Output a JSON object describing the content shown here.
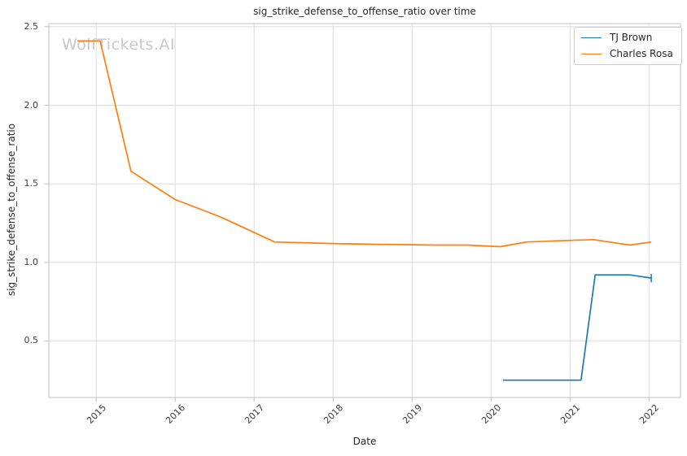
{
  "figure": {
    "watermark": "WolfTickets.AI"
  },
  "chart_data": {
    "type": "line",
    "title": "sig_strike_defense_to_offense_ratio over time",
    "xlabel": "Date",
    "ylabel": "sig_strike_defense_to_offense_ratio",
    "xlim": [
      2014.4,
      2022.4
    ],
    "ylim": [
      0.14,
      2.52
    ],
    "grid": true,
    "legend_position": "upper-right",
    "xticks": [
      {
        "value": 2015,
        "label": "2015"
      },
      {
        "value": 2016,
        "label": "2016"
      },
      {
        "value": 2017,
        "label": "2017"
      },
      {
        "value": 2018,
        "label": "2018"
      },
      {
        "value": 2019,
        "label": "2019"
      },
      {
        "value": 2020,
        "label": "2020"
      },
      {
        "value": 2021,
        "label": "2021"
      },
      {
        "value": 2022,
        "label": "2022"
      }
    ],
    "yticks": [
      {
        "value": 0.5,
        "label": "0.5"
      },
      {
        "value": 1.0,
        "label": "1.0"
      },
      {
        "value": 1.5,
        "label": "1.5"
      },
      {
        "value": 2.0,
        "label": "2.0"
      },
      {
        "value": 2.5,
        "label": "2.5"
      }
    ],
    "series": [
      {
        "name": "TJ Brown",
        "color": "#1f77b4",
        "end_marker": "vertical-tick",
        "points": [
          [
            2020.15,
            0.25
          ],
          [
            2021.14,
            0.25
          ],
          [
            2021.32,
            0.92
          ],
          [
            2021.76,
            0.92
          ],
          [
            2022.03,
            0.9
          ]
        ]
      },
      {
        "name": "Charles Rosa",
        "color": "#ff7f0e",
        "end_marker": null,
        "points": [
          [
            2014.76,
            2.41
          ],
          [
            2015.05,
            2.41
          ],
          [
            2015.44,
            1.58
          ],
          [
            2016.0,
            1.4
          ],
          [
            2016.57,
            1.29
          ],
          [
            2017.26,
            1.13
          ],
          [
            2018.0,
            1.12
          ],
          [
            2018.6,
            1.115
          ],
          [
            2019.3,
            1.11
          ],
          [
            2019.7,
            1.11
          ],
          [
            2020.12,
            1.1
          ],
          [
            2020.45,
            1.13
          ],
          [
            2021.0,
            1.14
          ],
          [
            2021.3,
            1.145
          ],
          [
            2021.76,
            1.11
          ],
          [
            2022.03,
            1.13
          ]
        ]
      }
    ],
    "colors": {
      "background": "#ffffff",
      "grid": "#dcdcdc",
      "spine": "#c3c3c3",
      "tick": "#c3c3c3",
      "text": "#262626",
      "tick_text": "#3c3c3c",
      "watermark": "#c9c9c9"
    }
  }
}
